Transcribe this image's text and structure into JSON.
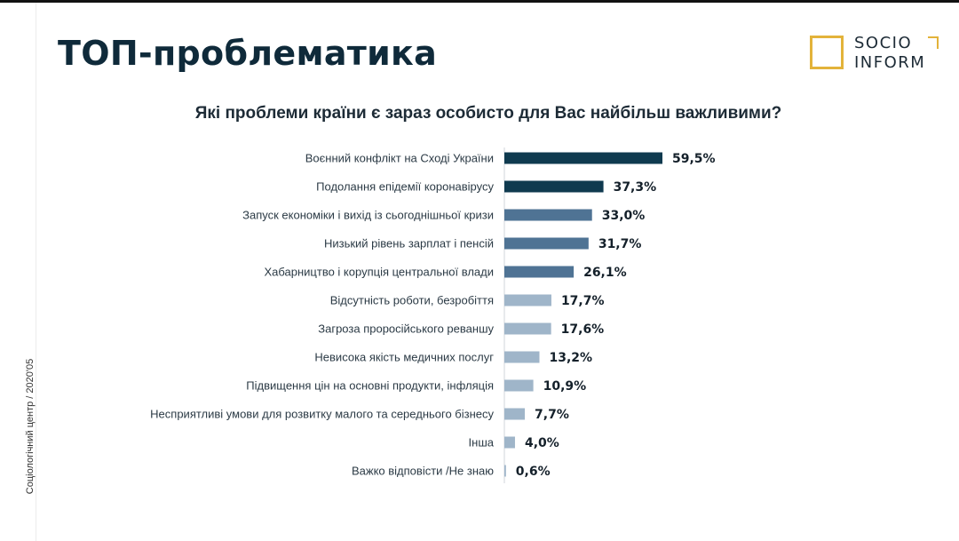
{
  "page": {
    "title": "ТОП-проблематика",
    "question": "Які проблеми країни є зараз особисто для Вас найбільш важливими?",
    "side_note": "Соціологічний центр / 2020'05",
    "logo": {
      "line1": "SOCIO",
      "line2": "INFORM",
      "accent_color": "#e3b33a"
    }
  },
  "colors": {
    "title": "#0f2a3a",
    "bar_dark": "#0f3a4f",
    "bar_medium": "#4f7394",
    "bar_light": "#9fb5c9"
  },
  "chart_data": {
    "type": "bar",
    "orientation": "horizontal",
    "title": "Які проблеми країни є зараз особисто для Вас найбільш важливими?",
    "xlabel": "",
    "ylabel": "",
    "xlim": [
      0,
      60
    ],
    "grid": false,
    "categories": [
      "Воєнний конфлікт на Сході України",
      "Подолання епідемії коронавірусу",
      "Запуск економіки і вихід із сьогоднішньої кризи",
      "Низький рівень зарплат і пенсій",
      "Хабарництво і корупція центральної влади",
      "Відсутність роботи, безробіття",
      "Загроза проросійського реваншу",
      "Невисока якість медичних послуг",
      "Підвищення цін на основні продукти, інфляція",
      "Несприятливі умови для розвитку малого та середнього бізнесу",
      "Інша",
      "Важко відповісти /Не знаю"
    ],
    "values": [
      59.5,
      37.3,
      33.0,
      31.7,
      26.1,
      17.7,
      17.6,
      13.2,
      10.9,
      7.7,
      4.0,
      0.6
    ],
    "value_labels": [
      "59,5%",
      "37,3%",
      "33,0%",
      "31,7%",
      "26,1%",
      "17,7%",
      "17,6%",
      "13,2%",
      "10,9%",
      "7,7%",
      "4,0%",
      "0,6%"
    ],
    "color_groups": [
      "dark",
      "dark",
      "medium",
      "medium",
      "medium",
      "light",
      "light",
      "light",
      "light",
      "light",
      "light",
      "light"
    ]
  }
}
